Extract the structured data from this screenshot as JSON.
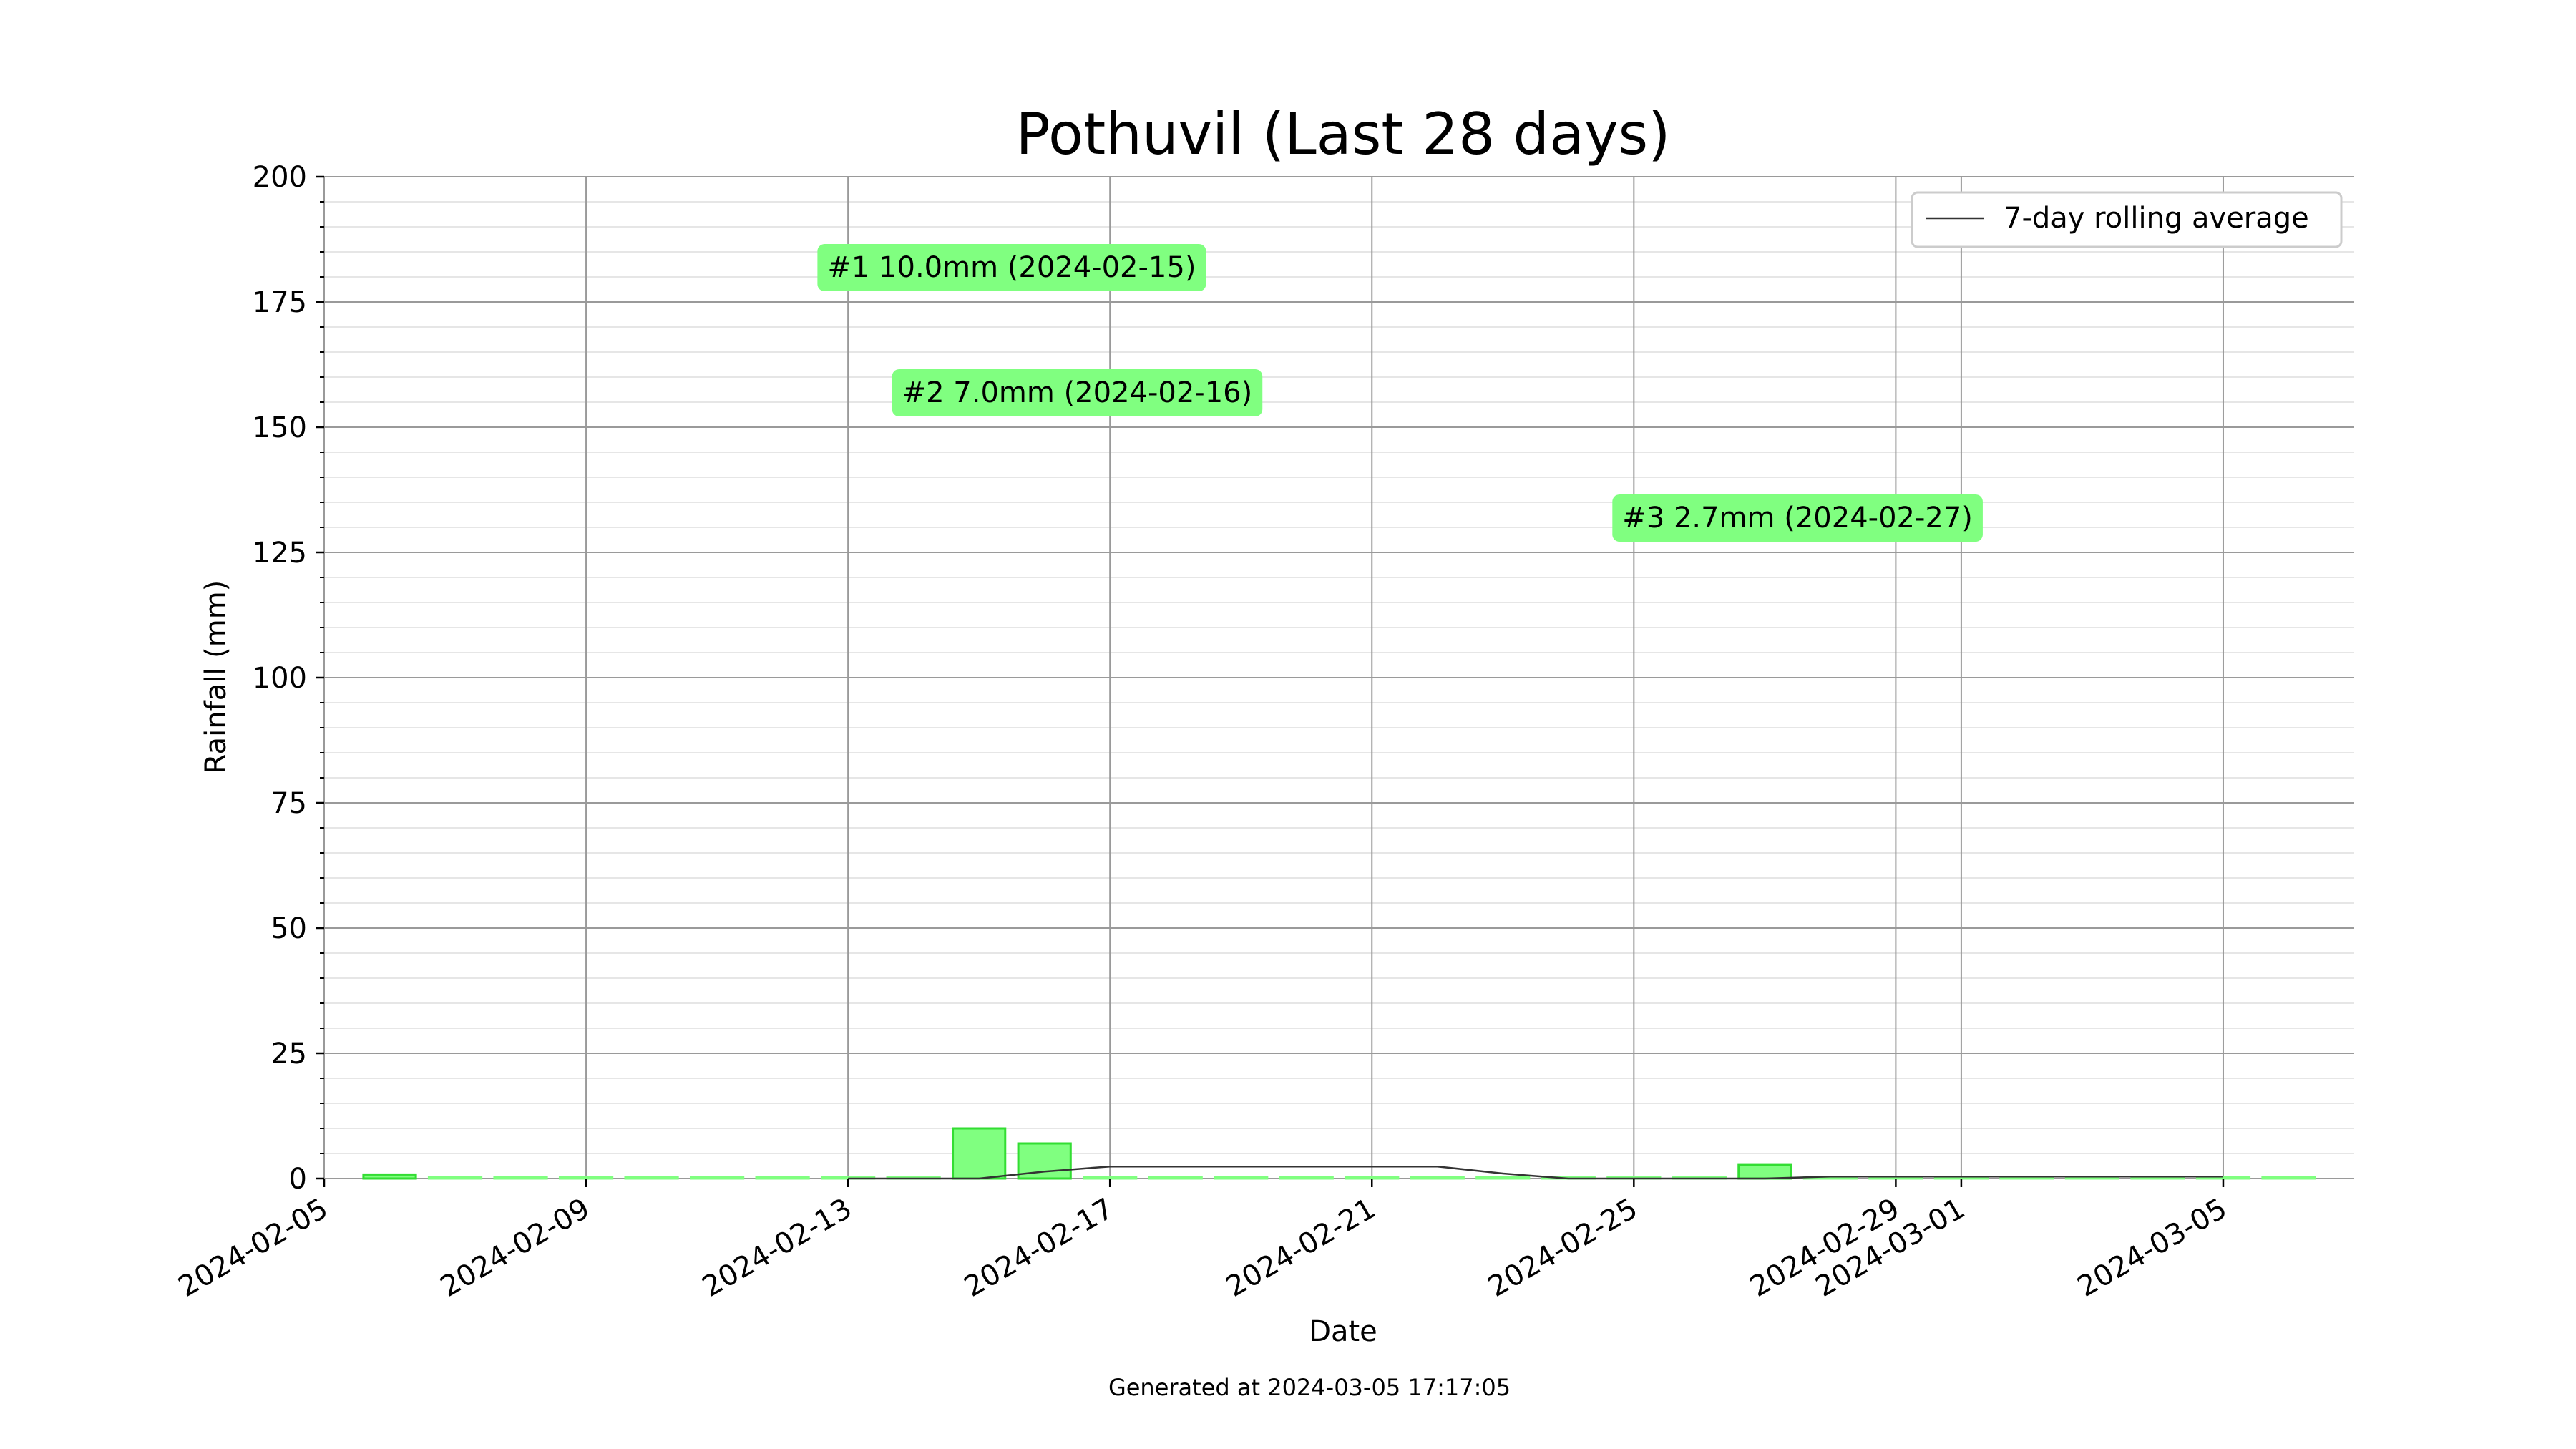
{
  "chart_data": {
    "type": "bar",
    "title": "Pothuvil (Last 28 days)",
    "xlabel": "Date",
    "ylabel": "Rainfall (mm)",
    "ylim": [
      0,
      200
    ],
    "yticks": [
      0,
      25,
      50,
      75,
      100,
      125,
      150,
      175,
      200
    ],
    "yminor_step": 5,
    "grid": true,
    "xlim": [
      "2024-02-05",
      "2024-03-07"
    ],
    "xticks": [
      "2024-02-05",
      "2024-02-09",
      "2024-02-13",
      "2024-02-17",
      "2024-02-21",
      "2024-02-25",
      "2024-02-29",
      "2024-03-01",
      "2024-03-05"
    ],
    "categories": [
      "2024-02-06",
      "2024-02-07",
      "2024-02-08",
      "2024-02-09",
      "2024-02-10",
      "2024-02-11",
      "2024-02-12",
      "2024-02-13",
      "2024-02-14",
      "2024-02-15",
      "2024-02-16",
      "2024-02-17",
      "2024-02-18",
      "2024-02-19",
      "2024-02-20",
      "2024-02-21",
      "2024-02-22",
      "2024-02-23",
      "2024-02-24",
      "2024-02-25",
      "2024-02-26",
      "2024-02-27",
      "2024-02-28",
      "2024-02-29",
      "2024-03-01",
      "2024-03-02",
      "2024-03-03",
      "2024-03-04",
      "2024-03-05",
      "2024-03-06"
    ],
    "values": [
      0.8,
      0,
      0,
      0,
      0,
      0,
      0,
      0,
      0,
      10.0,
      7.0,
      0,
      0,
      0,
      0,
      0,
      0,
      0,
      0,
      0,
      0,
      2.7,
      0,
      0,
      0,
      0,
      0,
      0,
      0,
      0
    ],
    "bar_color": "#80ff80",
    "bar_edge_color": "#33dd33",
    "rolling_average": {
      "name": "7-day rolling average",
      "color": "#333333",
      "x": [
        "2024-02-13",
        "2024-02-14",
        "2024-02-15",
        "2024-02-16",
        "2024-02-17",
        "2024-02-18",
        "2024-02-19",
        "2024-02-20",
        "2024-02-21",
        "2024-02-22",
        "2024-02-23",
        "2024-02-24",
        "2024-02-25",
        "2024-02-26",
        "2024-02-27",
        "2024-02-28",
        "2024-02-29",
        "2024-03-01",
        "2024-03-02",
        "2024-03-03",
        "2024-03-04",
        "2024-03-05"
      ],
      "values": [
        0,
        0,
        0,
        1.4,
        2.4,
        2.4,
        2.4,
        2.4,
        2.4,
        2.4,
        1.0,
        0,
        0,
        0,
        0,
        0.4,
        0.4,
        0.4,
        0.4,
        0.4,
        0.4,
        0.4
      ]
    },
    "legend": {
      "placement": "upper right",
      "entries": [
        "7-day rolling average"
      ]
    },
    "annotations": [
      {
        "text": "#1 10.0mm (2024-02-15)",
        "x": "2024-02-15",
        "y": 182
      },
      {
        "text": "#2 7.0mm (2024-02-16)",
        "x": "2024-02-16",
        "y": 157
      },
      {
        "text": "#3 2.7mm (2024-02-27)",
        "x": "2024-02-27",
        "y": 132
      }
    ],
    "annotation_bg": "#80ff80",
    "annotation_text_color": "#000080"
  },
  "footer": {
    "generated": "Generated at 2024-03-05 17:17:05"
  }
}
